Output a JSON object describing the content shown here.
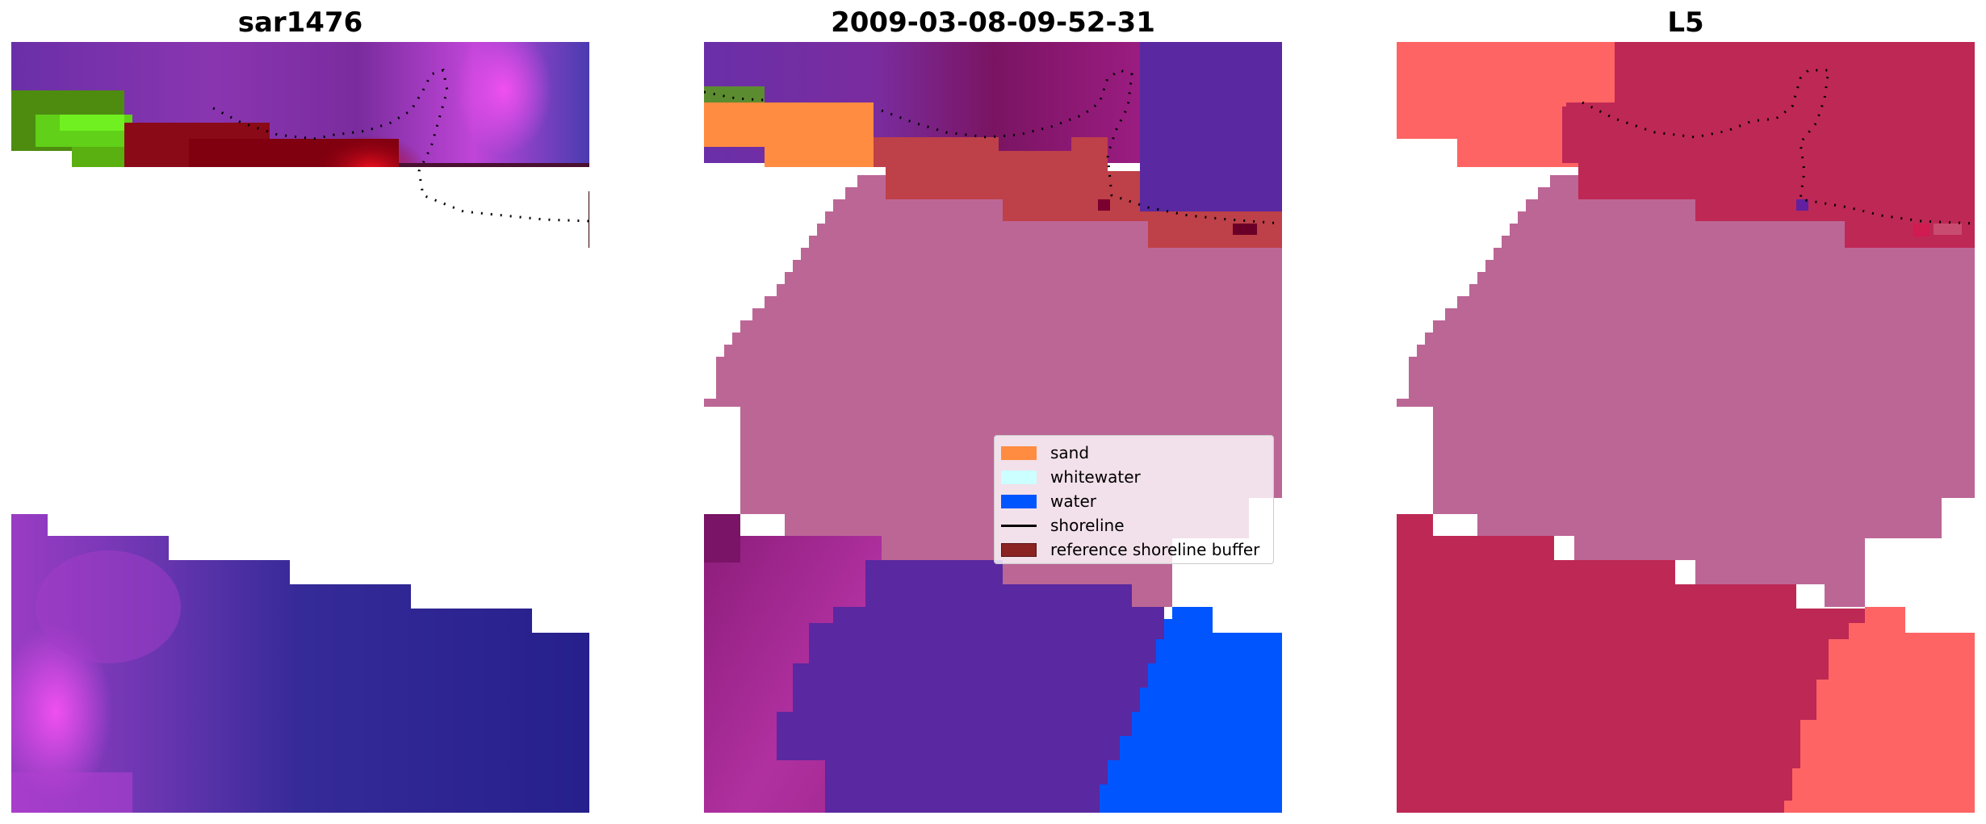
{
  "panels": [
    {
      "title": "sar1476"
    },
    {
      "title": "2009-03-08-09-52-31"
    },
    {
      "title": "L5"
    }
  ],
  "legend": {
    "items": [
      {
        "label": "sand",
        "color": "#ff8c40",
        "kind": "patch"
      },
      {
        "label": "whitewater",
        "color": "#ccffff",
        "kind": "patch"
      },
      {
        "label": "water",
        "color": "#0055ff",
        "kind": "patch"
      },
      {
        "label": "shoreline",
        "color": "#000000",
        "kind": "line"
      },
      {
        "label": "reference shoreline buffer",
        "color": "#8b2323",
        "kind": "patch"
      }
    ]
  },
  "colors": {
    "background": "#ffffff",
    "label_overlay": "#bc6696",
    "classified_dark_red": "#be4048",
    "water_class": "#0055ff",
    "sand_class": "#ff8c40",
    "l5_sand": "#fe6464",
    "l5_crimson": "#be2855",
    "l5_pink": "#bc6696",
    "image_purple": "#5a28a0",
    "image_blue": "#28228c"
  }
}
